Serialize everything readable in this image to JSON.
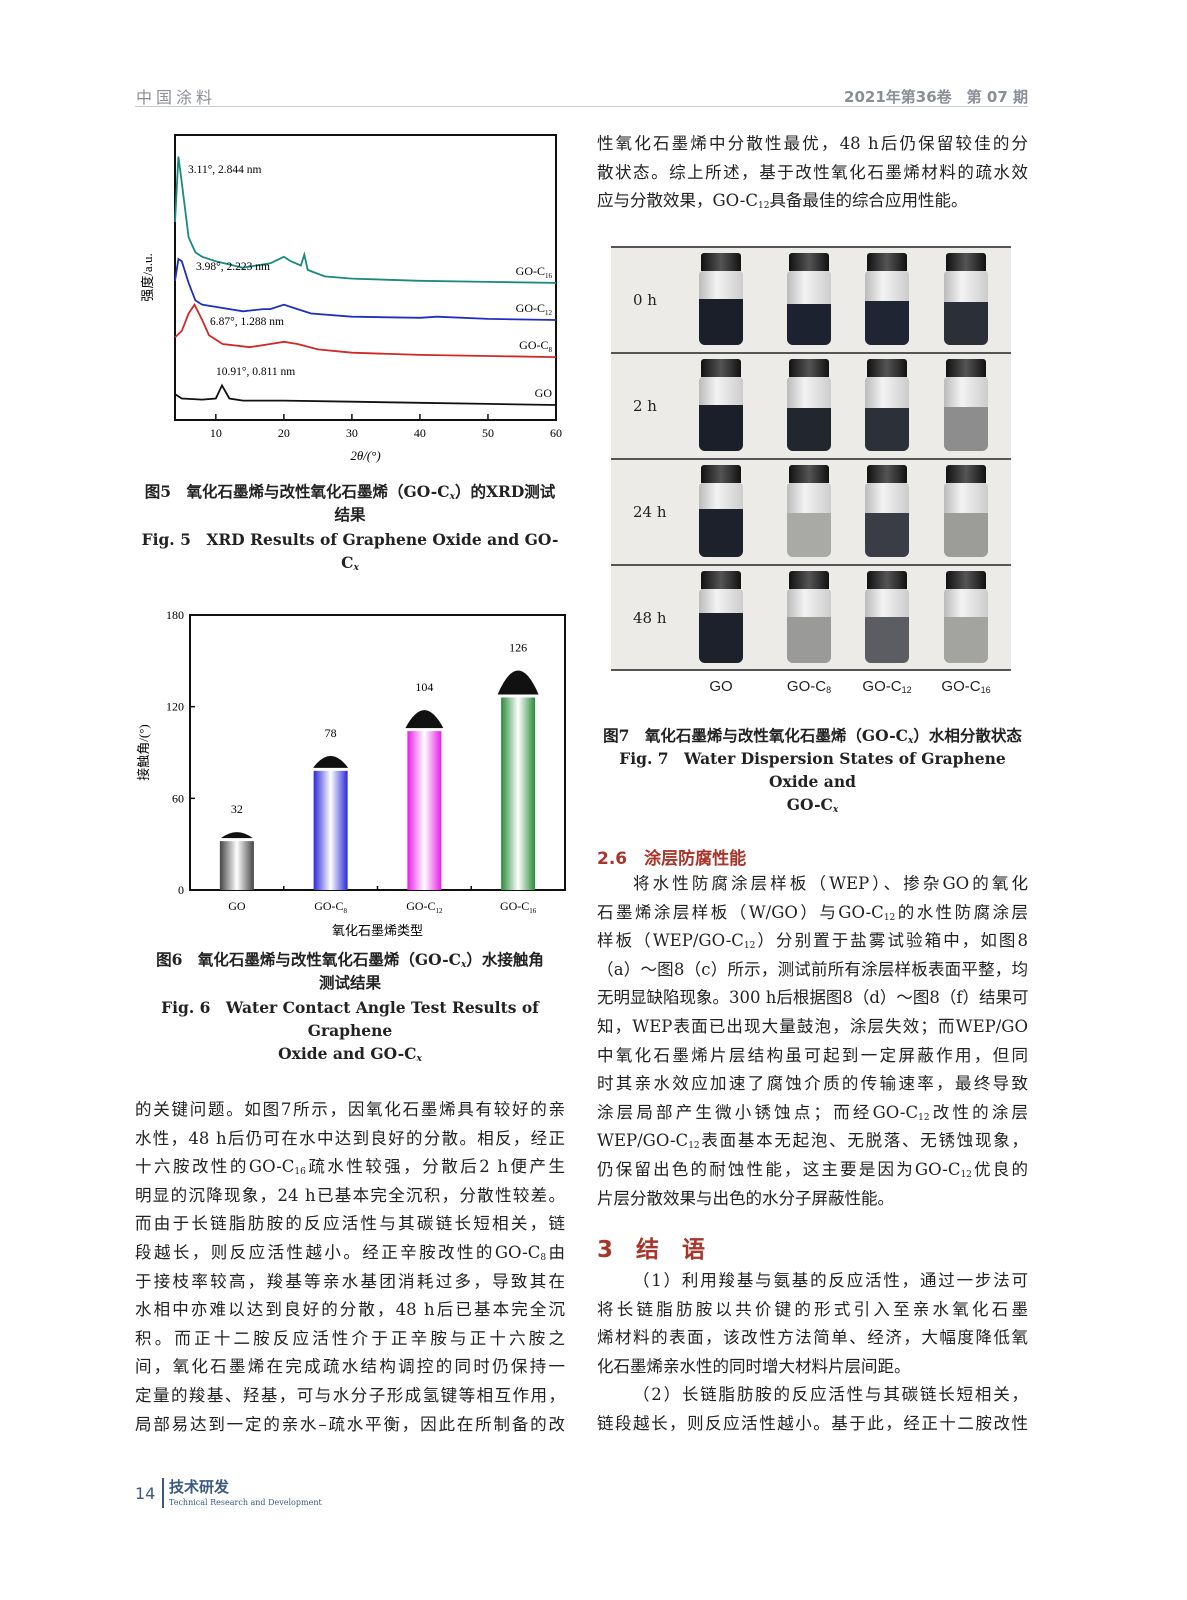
{
  "header": {
    "journal": "中国涂料",
    "issue": "2021年第36卷　第 07 期"
  },
  "footer": {
    "page": "14",
    "section_cn": "技术研发",
    "section_en": "Technical Research and Development"
  },
  "right_top_lines": [
    "性氧化石墨烯中分散性最优，48 h后仍保留较佳的分",
    "散状态。综上所述，基于改性氧化石墨烯材料的疏水效",
    "应与分散效果，GO-C_{12}具备最佳的综合应用性能。"
  ],
  "fig5": {
    "caption_cn_1": "图5　氧化石墨烯与改性氧化石墨烯（GO-C^{x}）的XRD测试",
    "caption_cn_2": "结果",
    "caption_en": "Fig. 5　XRD Results of Graphene Oxide and GO-C^{x}"
  },
  "fig6": {
    "caption_cn_1": "图6　氧化石墨烯与改性氧化石墨烯（GO-C^{x}）水接触角",
    "caption_cn_2": "测试结果",
    "caption_en_1": "Fig. 6　Water Contact Angle Test Results of Graphene",
    "caption_en_2": "Oxide and GO-C^{x}"
  },
  "fig7": {
    "rows": [
      "0 h",
      "2 h",
      "24 h",
      "48 h"
    ],
    "columns": [
      "GO",
      "GO-C_{8}",
      "GO-C_{12}",
      "GO-C_{16}"
    ],
    "liquid_colors": [
      [
        "#1a1f2a",
        "#1d2230",
        "#202533",
        "#2b2f38"
      ],
      [
        "#1a1f2a",
        "#22262f",
        "#2c3038",
        "#8c8d8c"
      ],
      [
        "#1c212b",
        "#a9a9a6",
        "#3a3d45",
        "#9c9c98"
      ],
      [
        "#1c212b",
        "#9a9b98",
        "#5b5d62",
        "#a3a3a0"
      ]
    ],
    "caption_cn": "图7　氧化石墨烯与改性氧化石墨烯（GO-C^{x}）水相分散状态",
    "caption_en_1": "Fig. 7　Water Dispersion States of Graphene Oxide and",
    "caption_en_2": "GO-C^{x}"
  },
  "left_bottom_lines": [
    "的关键问题。如图7所示，因氧化石墨烯具有较好的亲",
    "水性，48 h后仍可在水中达到良好的分散。相反，经正",
    "十六胺改性的GO-C_{16}疏水性较强，分散后2 h便产生",
    "明显的沉降现象，24 h已基本完全沉积，分散性较差。",
    "而由于长链脂肪胺的反应活性与其碳链长短相关，链",
    "段越长，则反应活性越小。经正辛胺改性的GO-C_{8}由",
    "于接枝率较高，羧基等亲水基团消耗过多，导致其在",
    "水相中亦难以达到良好的分散，48 h后已基本完全沉",
    "积。而正十二胺反应活性介于正辛胺与正十六胺之",
    "间，氧化石墨烯在完成疏水结构调控的同时仍保持一",
    "定量的羧基、羟基，可与水分子形成氢键等相互作用，",
    "局部易达到一定的亲水–疏水平衡，因此在所制备的改"
  ],
  "section_2_6": {
    "heading": "2.6　涂层防腐性能",
    "lines": [
      "将水性防腐涂层样板（WEP）、掺杂GO的氧化",
      "石墨烯涂层样板（W/GO）与GO-C_{12}的水性防腐涂层",
      "样板（WEP/GO-C_{12}）分别置于盐雾试验箱中，如图8",
      "（a）～图8（c）所示，测试前所有涂层样板表面平整，均",
      "无明显缺陷现象。300 h后根据图8（d）～图8（f）结果可",
      "知，WEP表面已出现大量鼓泡，涂层失效；而WEP/GO",
      "中氧化石墨烯片层结构虽可起到一定屏蔽作用，但同",
      "时其亲水效应加速了腐蚀介质的传输速率，最终导致",
      "涂层局部产生微小锈蚀点；而经GO-C_{12}改性的涂层",
      "WEP/GO-C_{12}表面基本无起泡、无脱落、无锈蚀现象，",
      "仍保留出色的耐蚀性能，这主要是因为GO-C_{12}优良的",
      "片层分散效果与出色的水分子屏蔽性能。"
    ]
  },
  "section_3": {
    "heading": "3　结　语",
    "lines": [
      "（1）利用羧基与氨基的反应活性，通过一步法可",
      "将长链脂肪胺以共价键的形式引入至亲水氧化石墨",
      "烯材料的表面，该改性方法简单、经济，大幅度降低氧",
      "化石墨烯亲水性的同时增大材料片层间距。",
      "（2）长链脂肪胺的反应活性与其碳链长短相关，",
      "链段越长，则反应活性越小。基于此，经正十二胺改性"
    ]
  },
  "chart_data": [
    {
      "type": "line",
      "xlabel": "2θ/(°)",
      "ylabel": "强度/a.u.",
      "xlim": [
        4,
        60
      ],
      "xticks": [
        10,
        20,
        30,
        40,
        50,
        60
      ],
      "grid": false,
      "series": [
        {
          "name": "GO-C_{16}",
          "color": "#1a8a80",
          "x": [
            4,
            4.5,
            5,
            6,
            7,
            8,
            10,
            14,
            18,
            20,
            21,
            22.5,
            23,
            23.5,
            26,
            30,
            40,
            50,
            60
          ],
          "y": [
            0.62,
            0.92,
            0.8,
            0.55,
            0.48,
            0.46,
            0.44,
            0.41,
            0.43,
            0.46,
            0.44,
            0.42,
            0.47,
            0.4,
            0.37,
            0.36,
            0.35,
            0.345,
            0.34
          ],
          "annotation": "3.11°, 2.844 nm"
        },
        {
          "name": "GO-C_{12}",
          "color": "#1f2fbf",
          "x": [
            4,
            4.5,
            5,
            6,
            7,
            8,
            10,
            14,
            17,
            18,
            20,
            22,
            24,
            30,
            40,
            42.5,
            50,
            60
          ],
          "y": [
            0.35,
            0.45,
            0.44,
            0.34,
            0.26,
            0.24,
            0.23,
            0.21,
            0.22,
            0.22,
            0.24,
            0.22,
            0.2,
            0.185,
            0.18,
            0.185,
            0.175,
            0.17
          ],
          "annotation": "3.98°, 2.223 nm"
        },
        {
          "name": "GO-C_{8}",
          "color": "#d02828",
          "x": [
            4,
            5,
            6,
            6.87,
            8,
            9,
            11,
            15,
            18,
            20,
            22,
            25,
            30,
            40,
            50,
            60
          ],
          "y": [
            0.09,
            0.12,
            0.2,
            0.24,
            0.17,
            0.1,
            0.06,
            0.045,
            0.06,
            0.07,
            0.06,
            0.035,
            0.02,
            0.01,
            0.005,
            0.0
          ],
          "annotation": "6.87°, 1.288 nm"
        },
        {
          "name": "GO",
          "color": "#111111",
          "x": [
            4,
            5,
            8,
            10,
            10.91,
            12,
            14,
            20,
            30,
            40,
            50,
            60
          ],
          "y": [
            -0.17,
            -0.19,
            -0.195,
            -0.19,
            -0.13,
            -0.19,
            -0.2,
            -0.2,
            -0.205,
            -0.21,
            -0.215,
            -0.22
          ],
          "annotation": "10.91°, 0.811 nm"
        }
      ]
    },
    {
      "type": "bar",
      "categories": [
        "GO",
        "GO-C_{8}",
        "GO-C_{12}",
        "GO-C_{16}"
      ],
      "values": [
        32,
        78,
        104,
        126
      ],
      "colors": [
        "#444444",
        "#2a2ad8",
        "#e81ee8",
        "#2a8a3a"
      ],
      "xlabel": "氧化石墨烯类型",
      "ylabel": "接触角/(°)",
      "ylim": [
        0,
        180
      ],
      "yticks": [
        0,
        60,
        120,
        180
      ],
      "grid": false
    }
  ]
}
